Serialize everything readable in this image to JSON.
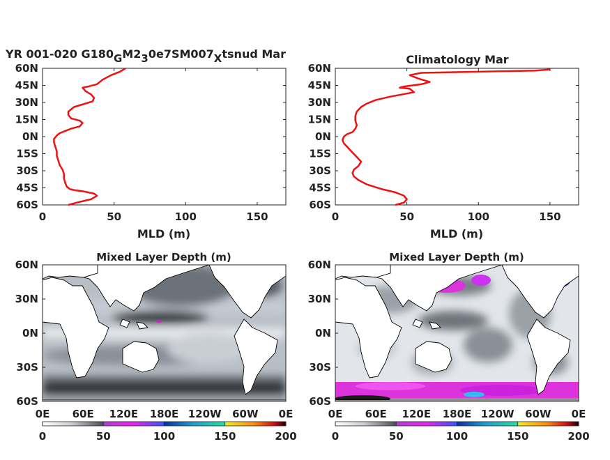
{
  "chart_data": [
    {
      "type": "line",
      "title_parts": [
        "YR 001-020 G180",
        "G",
        "M2",
        "3",
        "0e7SM007",
        "X",
        "tsnud Mar"
      ],
      "xlabel": "MLD (m)",
      "xlim": [
        0,
        170
      ],
      "ylim": [
        -60,
        60
      ],
      "xticks": [
        "0",
        "50",
        "100",
        "150"
      ],
      "yticks": [
        "60N",
        "45N",
        "30N",
        "15N",
        "0N",
        "15S",
        "30S",
        "45S",
        "60S"
      ],
      "color": "#ee1111",
      "x": [
        58,
        54,
        48,
        42,
        38,
        32,
        28,
        30,
        34,
        36,
        35,
        30,
        22,
        18,
        18,
        20,
        26,
        28,
        26,
        20,
        16,
        12,
        10,
        8,
        8,
        9,
        10,
        10,
        11,
        12,
        14,
        15,
        15,
        16,
        17,
        19,
        22,
        28,
        36,
        38,
        34,
        24,
        18
      ],
      "y": [
        60,
        57,
        54,
        50,
        46,
        44,
        43,
        40,
        37,
        34,
        31,
        29,
        26,
        22,
        19,
        16,
        14,
        12,
        9,
        7,
        5,
        3,
        1,
        -2,
        -5,
        -9,
        -13,
        -17,
        -21,
        -25,
        -29,
        -33,
        -37,
        -41,
        -44,
        -46,
        -47,
        -48,
        -50,
        -52,
        -55,
        -58,
        -60
      ]
    },
    {
      "type": "line",
      "title": "Climatology Mar",
      "xlabel": "MLD (m)",
      "xlim": [
        0,
        170
      ],
      "ylim": [
        -60,
        60
      ],
      "xticks": [
        "0",
        "50",
        "100",
        "150"
      ],
      "yticks": [
        "60N",
        "45N",
        "30N",
        "15N",
        "0N",
        "15S",
        "30S",
        "45S",
        "60S"
      ],
      "color": "#ee1111",
      "x": [
        150,
        140,
        100,
        60,
        52,
        58,
        66,
        60,
        48,
        45,
        52,
        55,
        38,
        28,
        22,
        18,
        15,
        14,
        14,
        15,
        14,
        12,
        8,
        6,
        5,
        6,
        9,
        12,
        15,
        18,
        16,
        13,
        12,
        13,
        16,
        22,
        32,
        42,
        48,
        50,
        48,
        42
      ],
      "y": [
        59,
        58,
        57,
        56,
        54,
        51,
        48,
        46,
        44,
        43,
        42,
        39,
        35,
        32,
        29,
        26,
        22,
        18,
        14,
        10,
        7,
        4,
        2,
        0,
        -3,
        -6,
        -10,
        -14,
        -18,
        -22,
        -26,
        -29,
        -32,
        -35,
        -38,
        -42,
        -46,
        -49,
        -52,
        -55,
        -58,
        -60
      ]
    },
    {
      "type": "heatmap",
      "title": "Mixed Layer Depth (m)",
      "xticks": [
        "0E",
        "60E",
        "120E",
        "180E",
        "120W",
        "60W",
        "0E"
      ],
      "yticks": [
        "60N",
        "30N",
        "0N",
        "30S",
        "60S"
      ],
      "colorbar_ticks": [
        "0",
        "50",
        "100",
        "150",
        "200"
      ],
      "clim": [
        0,
        200
      ]
    },
    {
      "type": "heatmap",
      "title": "Mixed Layer Depth (m)",
      "xticks": [
        "0E",
        "60E",
        "120E",
        "180E",
        "120W",
        "60W",
        "0E"
      ],
      "yticks": [
        "60N",
        "30N",
        "0N",
        "30S",
        "60S"
      ],
      "colorbar_ticks": [
        "0",
        "50",
        "100",
        "150",
        "200"
      ],
      "clim": [
        0,
        200
      ]
    }
  ]
}
